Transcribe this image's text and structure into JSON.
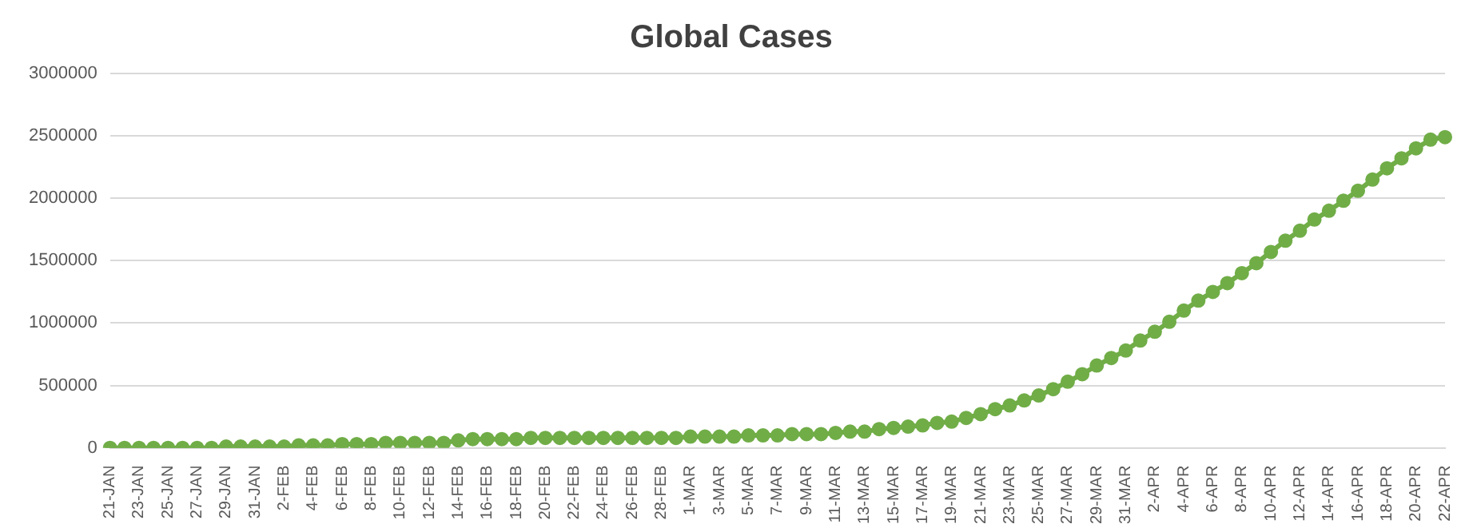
{
  "chart_data": {
    "type": "line",
    "title": "Global Cases",
    "categories": [
      "21-JAN",
      null,
      "23-JAN",
      null,
      "25-JAN",
      null,
      "27-JAN",
      null,
      "29-JAN",
      null,
      "31-JAN",
      null,
      "2-FEB",
      null,
      "4-FEB",
      null,
      "6-FEB",
      null,
      "8-FEB",
      null,
      "10-FEB",
      null,
      "12-FEB",
      null,
      "14-FEB",
      null,
      "16-FEB",
      null,
      "18-FEB",
      null,
      "20-FEB",
      null,
      "22-FEB",
      null,
      "24-FEB",
      null,
      "26-FEB",
      null,
      "28-FEB",
      null,
      "1-MAR",
      null,
      "3-MAR",
      null,
      "5-MAR",
      null,
      "7-MAR",
      null,
      "9-MAR",
      null,
      "11-MAR",
      null,
      "13-MAR",
      null,
      "15-MAR",
      null,
      "17-MAR",
      null,
      "19-MAR",
      null,
      "21-MAR",
      null,
      "23-MAR",
      null,
      "25-MAR",
      null,
      "27-MAR",
      null,
      "29-MAR",
      null,
      "31-MAR",
      null,
      "2-APR",
      null,
      "4-APR",
      null,
      "6-APR",
      null,
      "8-APR",
      null,
      "10-APR",
      null,
      "12-APR",
      null,
      "14-APR",
      null,
      "16-APR",
      null,
      "18-APR",
      null,
      "20-APR",
      null,
      "22-APR"
    ],
    "series": [
      {
        "color": "#70ad47",
        "values": [
          0,
          0,
          0,
          0,
          0,
          0,
          0,
          0,
          10000,
          10000,
          10000,
          10000,
          10000,
          20000,
          20000,
          20000,
          30000,
          30000,
          30000,
          40000,
          40000,
          40000,
          40000,
          40000,
          60000,
          70000,
          70000,
          70000,
          70000,
          80000,
          80000,
          80000,
          80000,
          80000,
          80000,
          80000,
          80000,
          80000,
          80000,
          80000,
          90000,
          90000,
          90000,
          90000,
          100000,
          100000,
          100000,
          110000,
          110000,
          110000,
          120000,
          130000,
          130000,
          150000,
          160000,
          170000,
          180000,
          200000,
          210000,
          240000,
          270000,
          310000,
          340000,
          380000,
          420000,
          470000,
          530000,
          590000,
          660000,
          720000,
          780000,
          860000,
          930000,
          1010000,
          1100000,
          1180000,
          1250000,
          1320000,
          1400000,
          1480000,
          1570000,
          1660000,
          1740000,
          1830000,
          1900000,
          1980000,
          2060000,
          2150000,
          2240000,
          2320000,
          2400000,
          2470000,
          2490000
        ]
      }
    ],
    "ylim": [
      0,
      3000000
    ],
    "yticks": [
      0,
      500000,
      1000000,
      1500000,
      2000000,
      2500000,
      3000000
    ],
    "grid": "y",
    "legend": false,
    "marker": "circle",
    "line_style": "solid"
  }
}
